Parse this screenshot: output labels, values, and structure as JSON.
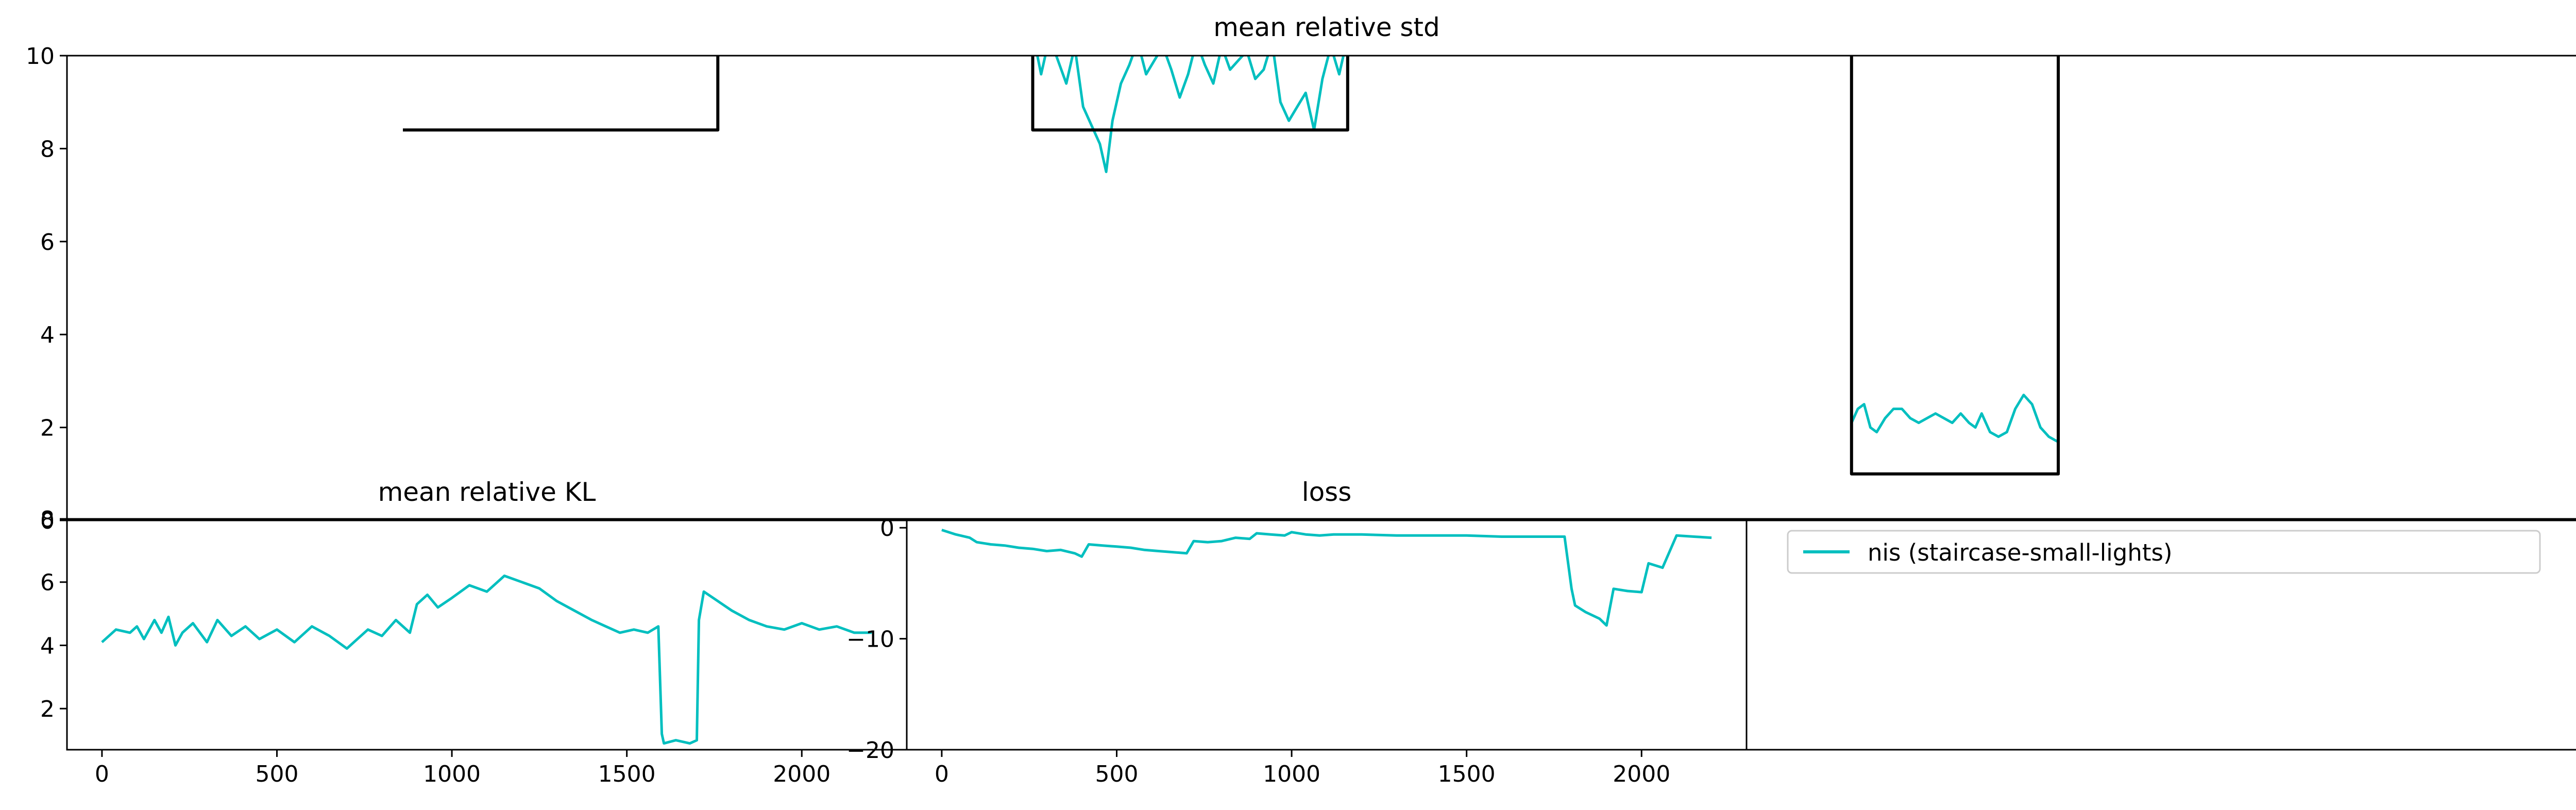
{
  "colors": {
    "nis": "#00bfbf",
    "reference": "#000000",
    "axes": "#000000",
    "background": "#ffffff"
  },
  "legend": {
    "placement": "upper-left",
    "entries": [
      {
        "label": "nis (staircase-small-lights)",
        "color": "#00bfbf"
      }
    ]
  },
  "chart_data": [
    {
      "type": "line",
      "title": "mean relative std",
      "xlabel": "",
      "ylabel": "",
      "xlim": [
        -100,
        2300
      ],
      "ylim": [
        0,
        10
      ],
      "yticks": [
        0,
        2,
        4,
        6,
        8,
        10
      ],
      "xticks": [],
      "grid": false,
      "series": [
        {
          "name": "nis (staircase-small-lights)",
          "color": "#00bfbf",
          "x": [
            820,
            828,
            836,
            844,
            852,
            860,
            868,
            876,
            884,
            890,
            896,
            904,
            912,
            920,
            928,
            936,
            944,
            952,
            960,
            968,
            976,
            984,
            992,
            1000,
            1008,
            1016,
            1024,
            1032,
            1040,
            1048,
            1056,
            1064,
            1072,
            1080,
            1088,
            1096,
            1104,
            1112,
            1120
          ],
          "y": [
            10.5,
            9.6,
            10.4,
            9.9,
            9.4,
            10.2,
            8.9,
            8.5,
            8.1,
            7.5,
            8.6,
            9.4,
            9.8,
            10.3,
            9.6,
            9.9,
            10.2,
            9.7,
            9.1,
            9.6,
            10.3,
            9.8,
            9.4,
            10.2,
            9.7,
            9.9,
            10.1,
            9.5,
            9.7,
            10.3,
            9.0,
            8.6,
            8.9,
            9.2,
            8.4,
            9.5,
            10.2,
            9.6,
            10.4
          ],
          "segments": [
            {
              "x": [
                1600,
                1606,
                1612,
                1618,
                1624,
                1632,
                1640,
                1648,
                1656,
                1664,
                1672,
                1680,
                1688,
                1696,
                1704,
                1712,
                1718,
                1724,
                1732,
                1740,
                1748,
                1756,
                1764,
                1772,
                1780,
                1788,
                1796
              ],
              "y": [
                2.1,
                2.4,
                2.5,
                2.0,
                1.9,
                2.2,
                2.4,
                2.4,
                2.2,
                2.1,
                2.2,
                2.3,
                2.2,
                2.1,
                2.3,
                2.1,
                2.0,
                2.3,
                1.9,
                1.8,
                1.9,
                2.4,
                2.7,
                2.5,
                2.0,
                1.8,
                1.7
              ]
            }
          ]
        },
        {
          "name": "",
          "color": "#000000",
          "x": [
            220,
            520,
            520,
            820,
            820,
            1120,
            1120
          ],
          "y": [
            8.4,
            8.4,
            10.5,
            10.5,
            8.4,
            8.4,
            10.5
          ],
          "segments": [
            {
              "x": [
                1600,
                1600,
                1797,
                1797
              ],
              "y": [
                10.5,
                1.0,
                1.0,
                10.5
              ]
            }
          ]
        }
      ]
    },
    {
      "type": "line",
      "title": "mean relative KL",
      "xlabel": "",
      "ylabel": "",
      "xlim": [
        -100,
        2300
      ],
      "ylim": [
        0.7,
        8.0
      ],
      "yticks": [
        2,
        4,
        6,
        8
      ],
      "xticks": [
        0,
        500,
        1000,
        1500,
        2000
      ],
      "grid": false,
      "series": [
        {
          "name": "nis (staircase-small-lights)",
          "color": "#00bfbf",
          "x": [
            0,
            40,
            80,
            100,
            120,
            150,
            170,
            190,
            210,
            230,
            260,
            300,
            330,
            370,
            410,
            450,
            500,
            550,
            600,
            650,
            700,
            720,
            760,
            800,
            840,
            880,
            900,
            930,
            960,
            1000,
            1050,
            1100,
            1150,
            1200,
            1250,
            1300,
            1350,
            1400,
            1440,
            1480,
            1520,
            1560,
            1590,
            1600,
            1606,
            1640,
            1680,
            1700,
            1706,
            1720,
            1760,
            1800,
            1850,
            1900,
            1950,
            2000,
            2050,
            2100,
            2150,
            2200
          ],
          "y": [
            4.1,
            4.5,
            4.4,
            4.6,
            4.2,
            4.8,
            4.4,
            4.9,
            4.0,
            4.4,
            4.7,
            4.1,
            4.8,
            4.3,
            4.6,
            4.2,
            4.5,
            4.1,
            4.6,
            4.3,
            3.9,
            4.1,
            4.5,
            4.3,
            4.8,
            4.4,
            5.3,
            5.6,
            5.2,
            5.5,
            5.9,
            5.7,
            6.2,
            6.0,
            5.8,
            5.4,
            5.1,
            4.8,
            4.6,
            4.4,
            4.5,
            4.4,
            4.6,
            1.2,
            0.9,
            1.0,
            0.9,
            1.0,
            4.8,
            5.7,
            5.4,
            5.1,
            4.8,
            4.6,
            4.5,
            4.7,
            4.5,
            4.6,
            4.4,
            4.4
          ]
        }
      ]
    },
    {
      "type": "line",
      "title": "loss",
      "xlabel": "",
      "ylabel": "",
      "xlim": [
        -100,
        2300
      ],
      "ylim": [
        -20,
        0.8
      ],
      "yticks": [
        0,
        -10,
        -20
      ],
      "xticks": [
        0,
        500,
        1000,
        1500,
        2000
      ],
      "grid": false,
      "series": [
        {
          "name": "nis (staircase-small-lights)",
          "color": "#00bfbf",
          "x": [
            0,
            40,
            80,
            100,
            140,
            180,
            220,
            260,
            300,
            340,
            380,
            400,
            420,
            460,
            500,
            540,
            580,
            620,
            660,
            700,
            720,
            760,
            800,
            840,
            880,
            900,
            940,
            980,
            1000,
            1040,
            1080,
            1120,
            1200,
            1300,
            1400,
            1500,
            1600,
            1700,
            1780,
            1800,
            1810,
            1840,
            1880,
            1900,
            1920,
            1960,
            2000,
            2020,
            2060,
            2100,
            2150,
            2200
          ],
          "y": [
            -0.2,
            -0.6,
            -0.9,
            -1.3,
            -1.5,
            -1.6,
            -1.8,
            -1.9,
            -2.1,
            -2.0,
            -2.3,
            -2.6,
            -1.5,
            -1.6,
            -1.7,
            -1.8,
            -2.0,
            -2.1,
            -2.2,
            -2.3,
            -1.2,
            -1.3,
            -1.2,
            -0.9,
            -1.0,
            -0.5,
            -0.6,
            -0.7,
            -0.4,
            -0.6,
            -0.7,
            -0.6,
            -0.6,
            -0.7,
            -0.7,
            -0.7,
            -0.8,
            -0.8,
            -0.8,
            -5.5,
            -7.0,
            -7.6,
            -8.2,
            -8.8,
            -5.5,
            -5.7,
            -5.8,
            -3.2,
            -3.6,
            -0.7,
            -0.8,
            -0.9
          ]
        }
      ]
    }
  ]
}
